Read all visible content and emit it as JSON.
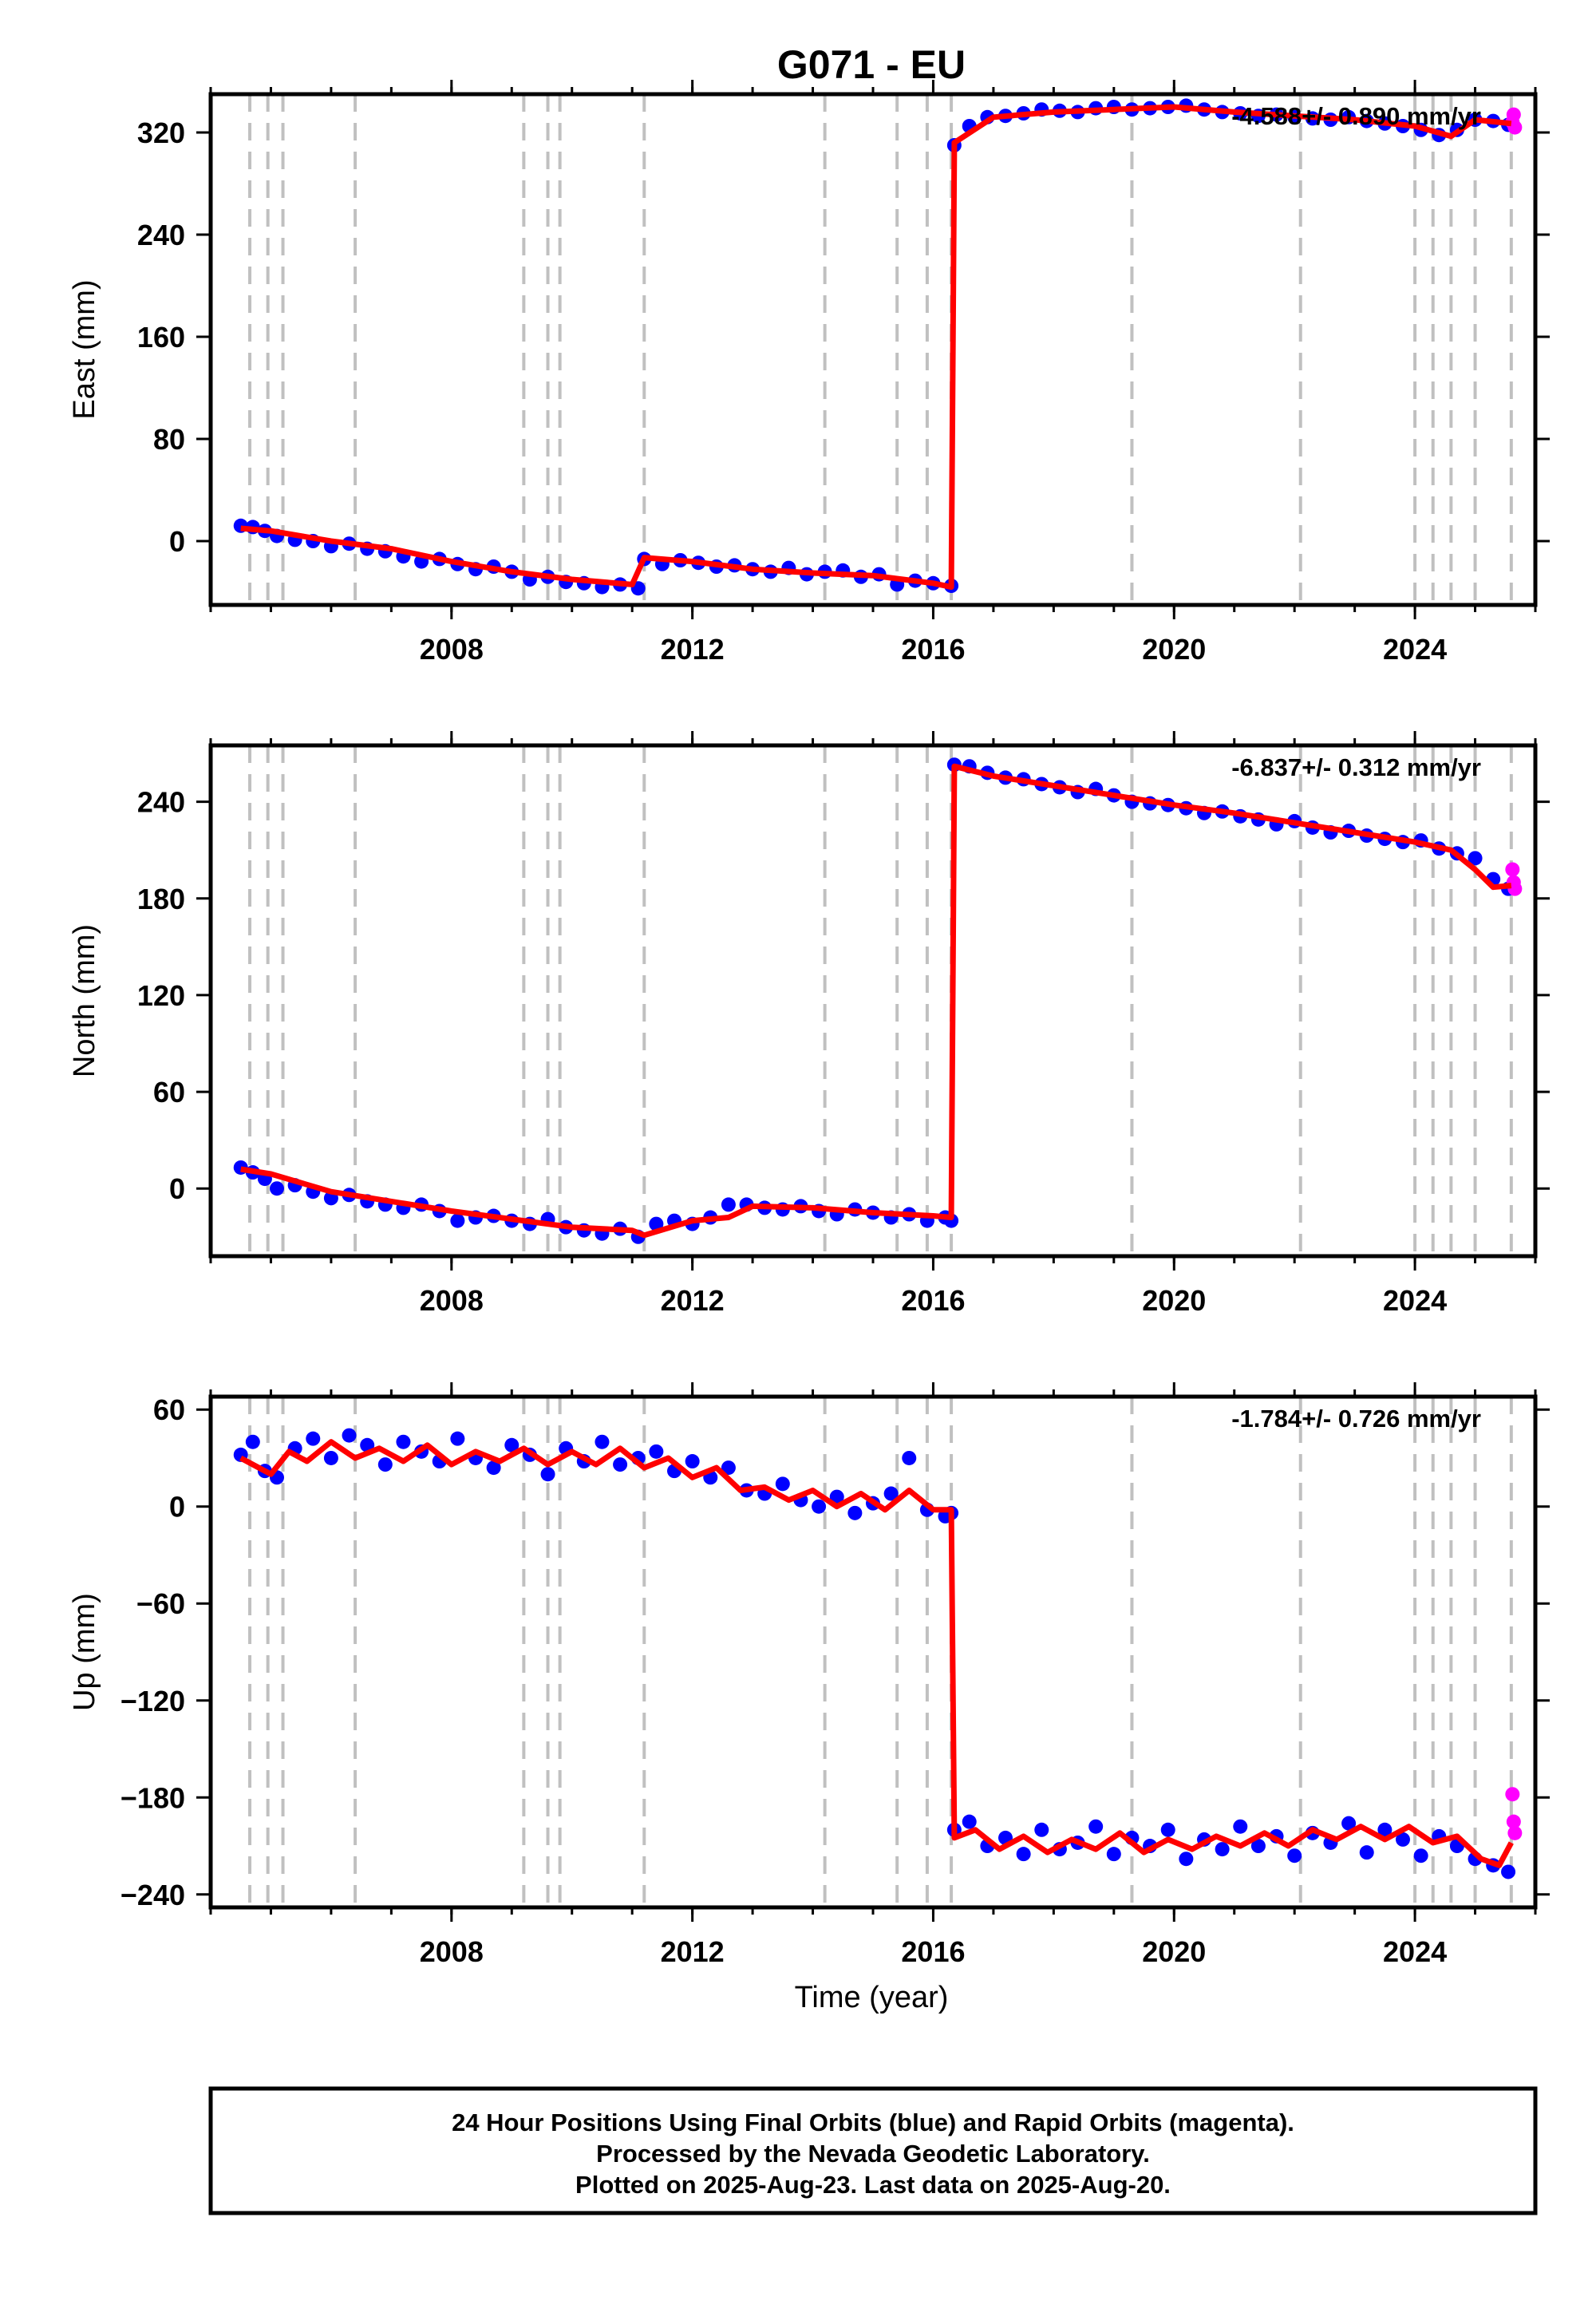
{
  "title": "G071 - EU",
  "xlabel": "Time (year)",
  "footer": {
    "line1": "24 Hour Positions Using Final Orbits (blue) and Rapid Orbits (magenta).",
    "line2": "Processed by the Nevada Geodetic Laboratory.",
    "line3": "Plotted on 2025-Aug-23. Last data on 2025-Aug-20."
  },
  "colors": {
    "final": "#0000ff",
    "rapid": "#ff00ff",
    "model": "#ff0000",
    "steps": "#c0c0c0",
    "frame": "#000000"
  },
  "chart_data": [
    {
      "type": "scatter",
      "component": "East",
      "ylabel": "East (mm)",
      "rate_text": "-4.588+/- 0.890 mm/yr",
      "xlim": [
        2004.0,
        2026.0
      ],
      "ylim": [
        -50,
        350
      ],
      "xticks": [
        2008,
        2012,
        2016,
        2020,
        2024
      ],
      "yticks": [
        0,
        80,
        160,
        240,
        320
      ],
      "step_lines": [
        2004.65,
        2004.95,
        2005.2,
        2006.4,
        2009.2,
        2009.6,
        2009.8,
        2011.2,
        2014.2,
        2015.4,
        2015.9,
        2016.3,
        2019.3,
        2022.1,
        2024.0,
        2024.3,
        2024.6,
        2025.0,
        2025.6
      ],
      "series": [
        {
          "name": "final",
          "x": [
            2004.5,
            2004.7,
            2004.9,
            2005.1,
            2005.4,
            2005.7,
            2006.0,
            2006.3,
            2006.6,
            2006.9,
            2007.2,
            2007.5,
            2007.8,
            2008.1,
            2008.4,
            2008.7,
            2009.0,
            2009.3,
            2009.6,
            2009.9,
            2010.2,
            2010.5,
            2010.8,
            2011.1,
            2011.2,
            2011.5,
            2011.8,
            2012.1,
            2012.4,
            2012.7,
            2013.0,
            2013.3,
            2013.6,
            2013.9,
            2014.2,
            2014.5,
            2014.8,
            2015.1,
            2015.4,
            2015.7,
            2016.0,
            2016.3,
            2016.35,
            2016.6,
            2016.9,
            2017.2,
            2017.5,
            2017.8,
            2018.1,
            2018.4,
            2018.7,
            2019.0,
            2019.3,
            2019.6,
            2019.9,
            2020.2,
            2020.5,
            2020.8,
            2021.1,
            2021.4,
            2021.7,
            2022.0,
            2022.3,
            2022.6,
            2022.9,
            2023.2,
            2023.5,
            2023.8,
            2024.1,
            2024.4,
            2024.7,
            2025.0,
            2025.3,
            2025.55
          ],
          "y": [
            12,
            11,
            8,
            4,
            1,
            0,
            -4,
            -2,
            -6,
            -8,
            -12,
            -16,
            -14,
            -18,
            -22,
            -20,
            -24,
            -30,
            -28,
            -32,
            -33,
            -36,
            -34,
            -37,
            -14,
            -18,
            -15,
            -17,
            -20,
            -19,
            -22,
            -24,
            -21,
            -26,
            -24,
            -23,
            -28,
            -26,
            -34,
            -31,
            -33,
            -35,
            310,
            325,
            332,
            333,
            335,
            338,
            337,
            336,
            339,
            340,
            338,
            339,
            340,
            341,
            338,
            336,
            335,
            333,
            334,
            332,
            331,
            330,
            332,
            329,
            327,
            325,
            322,
            318,
            322,
            330,
            329,
            326
          ]
        },
        {
          "name": "rapid",
          "x": [
            2025.62,
            2025.64,
            2025.66
          ],
          "y": [
            328,
            334,
            324
          ]
        }
      ],
      "model": {
        "x": [
          2004.5,
          2005.0,
          2006.0,
          2007.0,
          2008.0,
          2009.0,
          2010.0,
          2011.0,
          2011.2,
          2012.0,
          2013.0,
          2014.0,
          2015.0,
          2016.0,
          2016.3,
          2016.35,
          2017.0,
          2018.0,
          2019.0,
          2020.0,
          2021.0,
          2022.0,
          2023.0,
          2024.0,
          2024.6,
          2025.0,
          2025.6
        ],
        "y": [
          10,
          8,
          0,
          -6,
          -16,
          -24,
          -30,
          -34,
          -13,
          -16,
          -22,
          -25,
          -27,
          -33,
          -36,
          312,
          332,
          336,
          338,
          340,
          336,
          333,
          330,
          325,
          317,
          330,
          327
        ]
      }
    },
    {
      "type": "scatter",
      "component": "North",
      "ylabel": "North (mm)",
      "rate_text": "-6.837+/- 0.312 mm/yr",
      "xlim": [
        2004.0,
        2026.0
      ],
      "ylim": [
        -42,
        275
      ],
      "xticks": [
        2008,
        2012,
        2016,
        2020,
        2024
      ],
      "yticks": [
        0,
        60,
        120,
        180,
        240
      ],
      "step_lines": [
        2004.65,
        2004.95,
        2005.2,
        2006.4,
        2009.2,
        2009.6,
        2009.8,
        2011.2,
        2014.2,
        2015.4,
        2015.9,
        2016.3,
        2019.3,
        2022.1,
        2024.0,
        2024.3,
        2024.6,
        2025.0,
        2025.6
      ],
      "series": [
        {
          "name": "final",
          "x": [
            2004.5,
            2004.7,
            2004.9,
            2005.1,
            2005.4,
            2005.7,
            2006.0,
            2006.3,
            2006.6,
            2006.9,
            2007.2,
            2007.5,
            2007.8,
            2008.1,
            2008.4,
            2008.7,
            2009.0,
            2009.3,
            2009.6,
            2009.9,
            2010.2,
            2010.5,
            2010.8,
            2011.1,
            2011.4,
            2011.7,
            2012.0,
            2012.3,
            2012.6,
            2012.9,
            2013.2,
            2013.5,
            2013.8,
            2014.1,
            2014.4,
            2014.7,
            2015.0,
            2015.3,
            2015.6,
            2015.9,
            2016.2,
            2016.3,
            2016.35,
            2016.6,
            2016.9,
            2017.2,
            2017.5,
            2017.8,
            2018.1,
            2018.4,
            2018.7,
            2019.0,
            2019.3,
            2019.6,
            2019.9,
            2020.2,
            2020.5,
            2020.8,
            2021.1,
            2021.4,
            2021.7,
            2022.0,
            2022.3,
            2022.6,
            2022.9,
            2023.2,
            2023.5,
            2023.8,
            2024.1,
            2024.4,
            2024.7,
            2025.0,
            2025.3,
            2025.55
          ],
          "y": [
            13,
            10,
            6,
            0,
            2,
            -2,
            -6,
            -4,
            -8,
            -10,
            -12,
            -10,
            -14,
            -20,
            -18,
            -17,
            -20,
            -22,
            -19,
            -24,
            -26,
            -28,
            -25,
            -30,
            -22,
            -20,
            -22,
            -18,
            -10,
            -10,
            -12,
            -13,
            -11,
            -14,
            -16,
            -13,
            -15,
            -18,
            -16,
            -20,
            -18,
            -20,
            263,
            262,
            258,
            255,
            254,
            251,
            249,
            246,
            248,
            244,
            240,
            239,
            238,
            236,
            233,
            234,
            231,
            229,
            226,
            228,
            224,
            221,
            222,
            219,
            217,
            215,
            216,
            211,
            208,
            205,
            192,
            186
          ]
        },
        {
          "name": "rapid",
          "x": [
            2025.62,
            2025.64,
            2025.66
          ],
          "y": [
            198,
            190,
            186
          ]
        }
      ],
      "model": {
        "x": [
          2004.5,
          2005.0,
          2006.0,
          2007.0,
          2008.0,
          2009.0,
          2010.0,
          2011.0,
          2011.2,
          2012.0,
          2012.6,
          2013.0,
          2014.0,
          2015.0,
          2016.0,
          2016.3,
          2016.35,
          2017.0,
          2018.0,
          2019.0,
          2020.0,
          2021.0,
          2022.0,
          2023.0,
          2024.0,
          2024.6,
          2025.0,
          2025.3,
          2025.6
        ],
        "y": [
          12,
          9,
          -2,
          -8,
          -14,
          -19,
          -24,
          -26,
          -29,
          -20,
          -18,
          -11,
          -12,
          -15,
          -17,
          -18,
          262,
          256,
          250,
          244,
          238,
          233,
          227,
          221,
          215,
          210,
          198,
          187,
          188
        ]
      }
    },
    {
      "type": "scatter",
      "component": "Up",
      "ylabel": "Up (mm)",
      "rate_text": "-1.784+/- 0.726 mm/yr",
      "xlim": [
        2004.0,
        2026.0
      ],
      "ylim": [
        -248,
        68
      ],
      "xticks": [
        2008,
        2012,
        2016,
        2020,
        2024
      ],
      "yticks": [
        60,
        0,
        -60,
        -120,
        -180,
        -240
      ],
      "step_lines": [
        2004.65,
        2004.95,
        2005.2,
        2006.4,
        2009.2,
        2009.6,
        2009.8,
        2011.2,
        2014.2,
        2015.4,
        2015.9,
        2016.3,
        2019.3,
        2022.1,
        2024.0,
        2024.3,
        2024.6,
        2025.0,
        2025.6
      ],
      "series": [
        {
          "name": "final",
          "x": [
            2004.5,
            2004.7,
            2004.9,
            2005.1,
            2005.4,
            2005.7,
            2006.0,
            2006.3,
            2006.6,
            2006.9,
            2007.2,
            2007.5,
            2007.8,
            2008.1,
            2008.4,
            2008.7,
            2009.0,
            2009.3,
            2009.6,
            2009.9,
            2010.2,
            2010.5,
            2010.8,
            2011.1,
            2011.4,
            2011.7,
            2012.0,
            2012.3,
            2012.6,
            2012.9,
            2013.2,
            2013.5,
            2013.8,
            2014.1,
            2014.4,
            2014.7,
            2015.0,
            2015.3,
            2015.6,
            2015.9,
            2016.2,
            2016.3,
            2016.35,
            2016.6,
            2016.9,
            2017.2,
            2017.5,
            2017.8,
            2018.1,
            2018.4,
            2018.7,
            2019.0,
            2019.3,
            2019.6,
            2019.9,
            2020.2,
            2020.5,
            2020.8,
            2021.1,
            2021.4,
            2021.7,
            2022.0,
            2022.3,
            2022.6,
            2022.9,
            2023.2,
            2023.5,
            2023.8,
            2024.1,
            2024.4,
            2024.7,
            2025.0,
            2025.3,
            2025.55
          ],
          "y": [
            32,
            40,
            22,
            18,
            36,
            42,
            30,
            44,
            38,
            26,
            40,
            34,
            28,
            42,
            30,
            24,
            38,
            32,
            20,
            36,
            28,
            40,
            26,
            30,
            34,
            22,
            28,
            18,
            24,
            10,
            8,
            14,
            4,
            0,
            6,
            -4,
            2,
            8,
            30,
            -2,
            -6,
            -4,
            -200,
            -195,
            -210,
            -205,
            -215,
            -200,
            -212,
            -208,
            -198,
            -215,
            -205,
            -210,
            -200,
            -218,
            -206,
            -212,
            -198,
            -210,
            -204,
            -216,
            -202,
            -208,
            -196,
            -214,
            -200,
            -206,
            -216,
            -204,
            -210,
            -218,
            -222,
            -226
          ]
        },
        {
          "name": "rapid",
          "x": [
            2025.62,
            2025.64,
            2025.66
          ],
          "y": [
            -178,
            -195,
            -202
          ]
        }
      ],
      "model": {
        "x": [
          2004.5,
          2004.8,
          2005.0,
          2005.3,
          2005.6,
          2006.0,
          2006.4,
          2006.8,
          2007.2,
          2007.6,
          2008.0,
          2008.4,
          2008.8,
          2009.2,
          2009.6,
          2010.0,
          2010.4,
          2010.8,
          2011.2,
          2011.6,
          2012.0,
          2012.4,
          2012.8,
          2013.2,
          2013.6,
          2014.0,
          2014.4,
          2014.8,
          2015.2,
          2015.6,
          2016.0,
          2016.3,
          2016.35,
          2016.7,
          2017.1,
          2017.5,
          2017.9,
          2018.3,
          2018.7,
          2019.1,
          2019.5,
          2019.9,
          2020.3,
          2020.7,
          2021.1,
          2021.5,
          2021.9,
          2022.3,
          2022.7,
          2023.1,
          2023.5,
          2023.9,
          2024.3,
          2024.7,
          2025.1,
          2025.4,
          2025.6
        ],
        "y": [
          30,
          24,
          20,
          34,
          28,
          40,
          30,
          36,
          28,
          38,
          26,
          34,
          28,
          36,
          26,
          34,
          26,
          36,
          24,
          30,
          18,
          24,
          10,
          12,
          4,
          10,
          0,
          8,
          -2,
          10,
          -2,
          -2,
          -205,
          -200,
          -212,
          -204,
          -214,
          -206,
          -212,
          -202,
          -214,
          -206,
          -212,
          -204,
          -210,
          -202,
          -210,
          -200,
          -206,
          -198,
          -206,
          -198,
          -208,
          -204,
          -218,
          -222,
          -208
        ]
      }
    }
  ]
}
